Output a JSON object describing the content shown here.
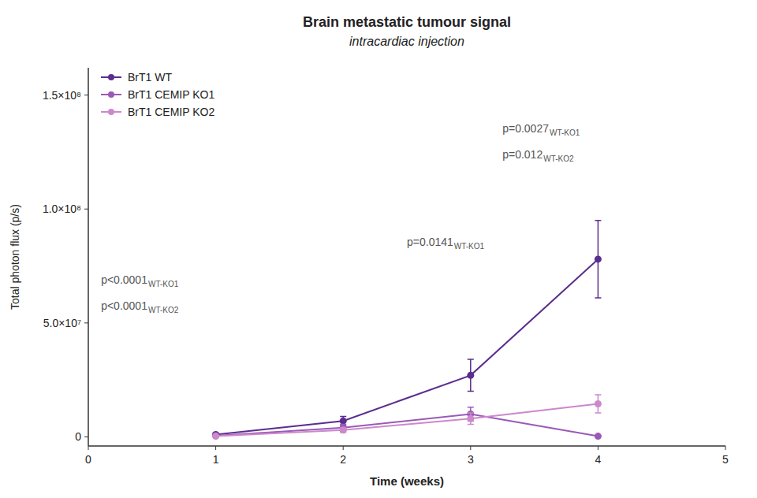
{
  "chart_data": {
    "type": "line",
    "title": "Brain metastatic tumour signal",
    "subtitle": "intracardiac injection",
    "x_label": "Time (weeks)",
    "y_label": "Total photon flux (p/s)",
    "x": [
      1,
      2,
      3,
      4
    ],
    "xlim": [
      0,
      5
    ],
    "ylim": [
      -4000000.0,
      162000000.0
    ],
    "xticks": [
      0,
      1,
      2,
      3,
      4,
      5
    ],
    "yticks": [
      0,
      {
        "value": 50000000.0,
        "label": "5.0×10⁷"
      },
      {
        "value": 100000000.0,
        "label": "1.0×10⁸"
      },
      {
        "value": 150000000.0,
        "label": "1.5×10⁸"
      }
    ],
    "grid": false,
    "legend": "upper left",
    "marker": "circle",
    "series": [
      {
        "name": "BrT1 WT",
        "color": "#5b2d8e",
        "values": [
          1000000.0,
          7000000.0,
          27000000.0,
          78000000.0
        ],
        "yerr": [
          500000.0,
          2000000.0,
          7000000.0,
          17000000.0
        ]
      },
      {
        "name": "BrT1 CEMIP KO1",
        "color": "#9b59b6",
        "values": [
          500000.0,
          4000000.0,
          10000000.0,
          300000.0
        ],
        "yerr": [
          300000.0,
          1500000.0,
          3000000.0,
          200000.0
        ]
      },
      {
        "name": "BrT1 CEMIP KO2",
        "color": "#cc88cc",
        "values": [
          300000.0,
          3000000.0,
          8000000.0,
          14500000.0
        ],
        "yerr": [
          200000.0,
          1000000.0,
          2500000.0,
          4000000.0
        ]
      }
    ],
    "annotations": [
      {
        "text": "p<0.0001",
        "sub": "WT-KO1"
      },
      {
        "text": "p<0.0001",
        "sub": "WT-KO2"
      },
      {
        "text": "p=0.0141",
        "sub": "WT-KO1"
      },
      {
        "text": "p=0.0027",
        "sub": "WT-KO1"
      },
      {
        "text": "p=0.012",
        "sub": "WT-KO2"
      }
    ]
  }
}
